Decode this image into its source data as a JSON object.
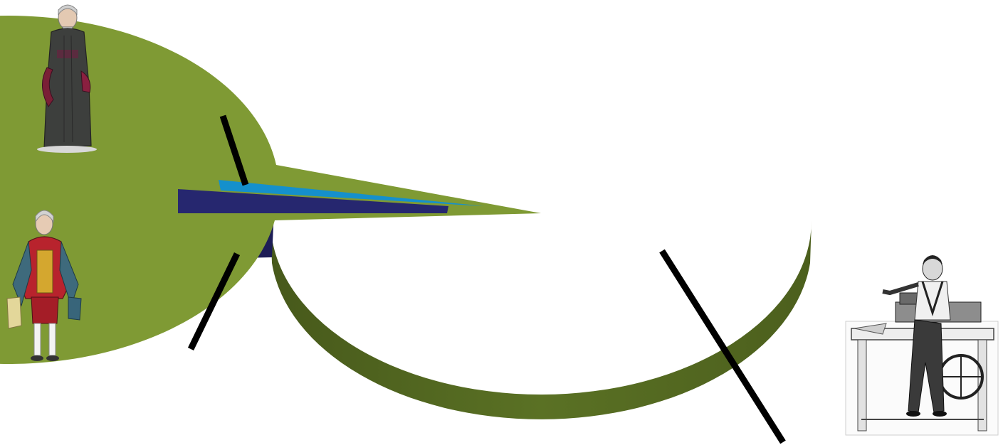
{
  "chart_data": {
    "type": "pie",
    "style": "3d-exploded",
    "title": "",
    "slices": [
      {
        "value": 97.0,
        "color": "#7f9a34"
      },
      {
        "value": 0.5,
        "color": "#1590cc"
      },
      {
        "value": 2.5,
        "color": "#26276f"
      }
    ],
    "legend": "none",
    "grid": false
  },
  "illustrations": [
    {
      "icon": "clergy-figure-icon"
    },
    {
      "icon": "nobleman-figure-icon"
    },
    {
      "icon": "workman-at-lathe-icon"
    }
  ],
  "colors": {
    "green_top": "#7f9a34",
    "green_side": "#556b22",
    "blue_top": "#1590cc",
    "navy_top": "#26276f",
    "navy_side": "#1d1d56",
    "leader": "#000000"
  }
}
